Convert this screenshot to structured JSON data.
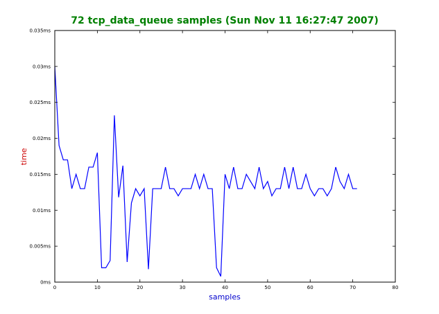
{
  "chart_data": {
    "type": "line",
    "title": "72 tcp_data_queue samples (Sun Nov 11 16:27:47 2007)",
    "xlabel": "samples",
    "ylabel": "time",
    "xlim": [
      0,
      80
    ],
    "ylim": [
      0,
      0.035
    ],
    "x_ticks": [
      0,
      10,
      20,
      30,
      40,
      50,
      60,
      70,
      80
    ],
    "x_tick_labels": [
      "0",
      "10",
      "20",
      "30",
      "40",
      "50",
      "60",
      "70",
      "80"
    ],
    "y_ticks": [
      0,
      0.005,
      0.01,
      0.015,
      0.02,
      0.025,
      0.03,
      0.035
    ],
    "y_tick_labels": [
      "0ms",
      "0.005ms",
      "0.01ms",
      "0.015ms",
      "0.02ms",
      "0.025ms",
      "0.03ms",
      "0.035ms"
    ],
    "grid": false,
    "colors": {
      "title": "#008000",
      "xlabel": "#0000cc",
      "ylabel": "#cc0000",
      "line": "#0000ff",
      "axes": "#000000"
    },
    "series": [
      {
        "x": [
          0,
          1,
          2,
          3,
          4,
          5,
          6,
          7,
          8,
          9,
          10,
          11,
          12,
          13,
          14,
          15,
          16,
          17,
          18,
          19,
          20,
          21,
          22,
          23,
          24,
          25,
          26,
          27,
          28,
          29,
          30,
          31,
          32,
          33,
          34,
          35,
          36,
          37,
          38,
          39,
          40,
          41,
          42,
          43,
          44,
          45,
          46,
          47,
          48,
          49,
          50,
          51,
          52,
          53,
          54,
          55,
          56,
          57,
          58,
          59,
          60,
          61,
          62,
          63,
          64,
          65,
          66,
          67,
          68,
          69,
          70,
          71
        ],
        "values": [
          0.03,
          0.019,
          0.017,
          0.017,
          0.013,
          0.015,
          0.013,
          0.013,
          0.016,
          0.016,
          0.018,
          0.002,
          0.002,
          0.003,
          0.0232,
          0.0118,
          0.0162,
          0.0028,
          0.011,
          0.013,
          0.012,
          0.013,
          0.0018,
          0.013,
          0.013,
          0.013,
          0.016,
          0.013,
          0.013,
          0.012,
          0.013,
          0.013,
          0.013,
          0.015,
          0.013,
          0.015,
          0.013,
          0.013,
          0.002,
          0.0008,
          0.015,
          0.013,
          0.016,
          0.013,
          0.013,
          0.015,
          0.014,
          0.013,
          0.016,
          0.013,
          0.014,
          0.012,
          0.013,
          0.013,
          0.016,
          0.013,
          0.016,
          0.013,
          0.013,
          0.015,
          0.013,
          0.012,
          0.013,
          0.013,
          0.012,
          0.013,
          0.016,
          0.014,
          0.013,
          0.015,
          0.013,
          0.013
        ]
      }
    ]
  }
}
